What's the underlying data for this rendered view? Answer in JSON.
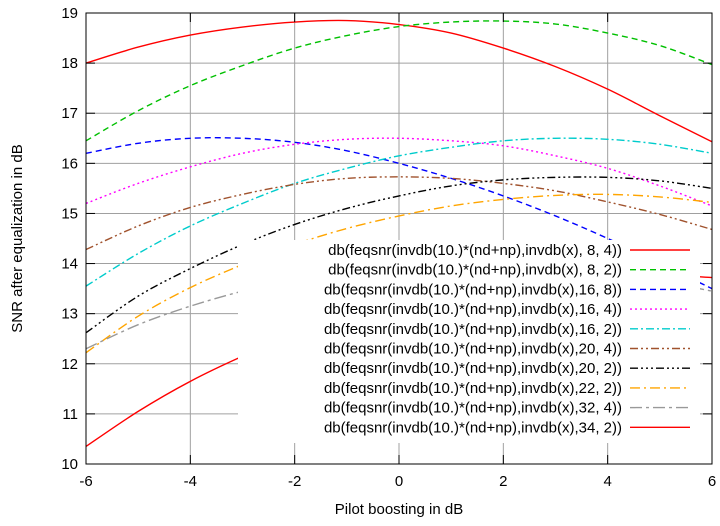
{
  "chart_data": {
    "type": "line",
    "title": "",
    "xlabel": "Pilot boosting in dB",
    "ylabel": "SNR after equalization in dB",
    "xlim": [
      -6,
      6
    ],
    "ylim": [
      10,
      19
    ],
    "xticks": [
      -6,
      -4,
      -2,
      0,
      2,
      4,
      6
    ],
    "yticks": [
      10,
      11,
      12,
      13,
      14,
      15,
      16,
      17,
      18,
      19
    ],
    "grid": true,
    "legend_position": "bottom-right",
    "x": [
      -6,
      -5,
      -4,
      -3,
      -2,
      -1,
      0,
      1,
      2,
      3,
      4,
      5,
      6
    ],
    "series": [
      {
        "name": "db(feqsnr(invdb(10.)*(nd+np),invdb(x), 8, 4))",
        "color": "#ff0000",
        "dash": "solid",
        "values": [
          18.0,
          18.32,
          18.56,
          18.72,
          18.82,
          18.85,
          18.77,
          18.6,
          18.3,
          17.93,
          17.48,
          16.95,
          16.43
        ]
      },
      {
        "name": "db(feqsnr(invdb(10.)*(nd+np),invdb(x), 8, 2))",
        "color": "#00c000",
        "dash": "dashed",
        "values": [
          16.45,
          17.05,
          17.55,
          17.95,
          18.3,
          18.55,
          18.73,
          18.82,
          18.84,
          18.78,
          18.6,
          18.35,
          17.97
        ]
      },
      {
        "name": "db(feqsnr(invdb(10.)*(nd+np),invdb(x),16, 8))",
        "color": "#0000ff",
        "dash": "dashed",
        "values": [
          16.2,
          16.4,
          16.5,
          16.5,
          16.42,
          16.25,
          16.0,
          15.7,
          15.35,
          14.95,
          14.5,
          14.0,
          13.5
        ]
      },
      {
        "name": "db(feqsnr(invdb(10.)*(nd+np),invdb(x),16, 4))",
        "color": "#ff00ff",
        "dash": "dotted",
        "values": [
          15.2,
          15.6,
          15.93,
          16.2,
          16.38,
          16.48,
          16.5,
          16.45,
          16.35,
          16.15,
          15.9,
          15.55,
          15.15
        ]
      },
      {
        "name": "db(feqsnr(invdb(10.)*(nd+np),invdb(x),16, 2))",
        "color": "#00cccc",
        "dash": "dashdot",
        "values": [
          13.55,
          14.2,
          14.75,
          15.2,
          15.6,
          15.9,
          16.15,
          16.32,
          16.45,
          16.5,
          16.48,
          16.38,
          16.2
        ]
      },
      {
        "name": "db(feqsnr(invdb(10.)*(nd+np),invdb(x),20, 4))",
        "color": "#a0522d",
        "dash": "dashdotdot",
        "values": [
          14.28,
          14.75,
          15.12,
          15.38,
          15.58,
          15.7,
          15.73,
          15.7,
          15.6,
          15.45,
          15.23,
          14.98,
          14.68
        ]
      },
      {
        "name": "db(feqsnr(invdb(10.)*(nd+np),invdb(x),20, 2))",
        "color": "#000000",
        "dash": "dashdotdotdot",
        "values": [
          12.62,
          13.35,
          13.9,
          14.38,
          14.78,
          15.1,
          15.35,
          15.55,
          15.67,
          15.72,
          15.72,
          15.65,
          15.5
        ]
      },
      {
        "name": "db(feqsnr(invdb(10.)*(nd+np),invdb(x),22, 2))",
        "color": "#ffa500",
        "dash": "longdash",
        "values": [
          12.22,
          12.95,
          13.52,
          13.98,
          14.38,
          14.7,
          14.95,
          15.15,
          15.28,
          15.36,
          15.38,
          15.33,
          15.22
        ]
      },
      {
        "name": "db(feqsnr(invdb(10.)*(nd+np),invdb(x),32, 4))",
        "color": "#999999",
        "dash": "longdashdot",
        "values": [
          12.3,
          12.78,
          13.15,
          13.45,
          13.7,
          13.87,
          13.98,
          14.02,
          14.0,
          13.93,
          13.82,
          13.65,
          13.45
        ]
      },
      {
        "name": "db(feqsnr(invdb(10.)*(nd+np),invdb(x),34, 2))",
        "color": "#ff0000",
        "dash": "solid",
        "values": [
          10.35,
          11.05,
          11.65,
          12.15,
          12.58,
          12.95,
          13.25,
          13.48,
          13.65,
          13.75,
          13.8,
          13.78,
          13.72
        ]
      }
    ]
  }
}
